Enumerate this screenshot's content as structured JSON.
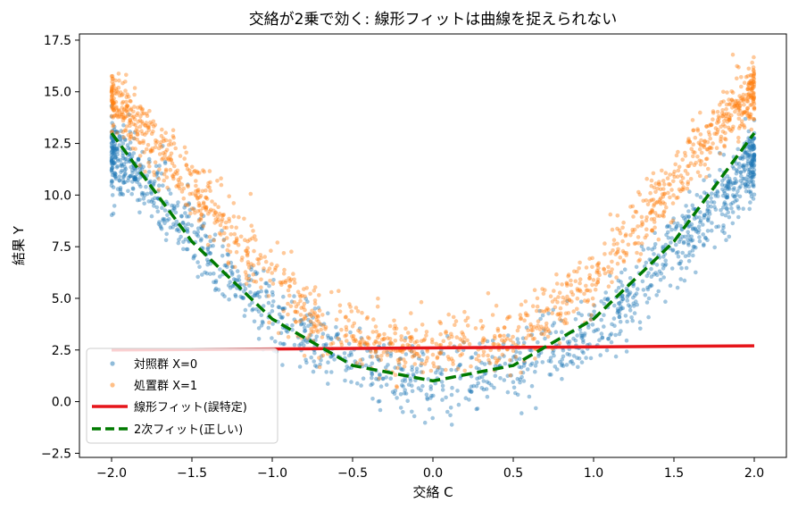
{
  "chart_data": {
    "type": "scatter",
    "title": "交絡が2乗で効く: 線形フィットは曲線を捉えられない",
    "xlabel": "交絡 C",
    "ylabel": "結果 Y",
    "xlim": [
      -2.2,
      2.2
    ],
    "ylim": [
      -2.7,
      17.8
    ],
    "x_ticks": [
      -2.0,
      -1.5,
      -1.0,
      -0.5,
      0.0,
      0.5,
      1.0,
      1.5,
      2.0
    ],
    "x_tick_labels": [
      "−2.0",
      "−1.5",
      "−1.0",
      "−0.5",
      "0.0",
      "0.5",
      "1.0",
      "1.5",
      "2.0"
    ],
    "y_ticks": [
      -2.5,
      0.0,
      2.5,
      5.0,
      7.5,
      10.0,
      12.5,
      15.0,
      17.5
    ],
    "y_tick_labels": [
      "−2.5",
      "0.0",
      "2.5",
      "5.0",
      "7.5",
      "10.0",
      "12.5",
      "15.0",
      "17.5"
    ],
    "grid": false,
    "legend_position": "lower-left",
    "series": [
      {
        "name": "対照群 X=0",
        "kind": "scatter",
        "color": "#1f77b4",
        "x": [
          -2.0,
          -1.8,
          -1.6,
          -1.4,
          -1.2,
          -1.0,
          -0.8,
          -0.6,
          -0.4,
          -0.2,
          0.0,
          0.2,
          0.4,
          0.6,
          0.8,
          1.0,
          1.2,
          1.4,
          1.6,
          1.8,
          2.0
        ],
        "y": [
          12.0,
          10.7,
          9.0,
          7.0,
          5.5,
          4.2,
          3.0,
          2.2,
          1.5,
          1.2,
          1.0,
          1.1,
          1.4,
          2.0,
          2.7,
          3.5,
          4.8,
          6.5,
          8.2,
          9.8,
          11.8
        ]
      },
      {
        "name": "処置群 X=1",
        "kind": "scatter",
        "color": "#ff7f0e",
        "x": [
          -2.0,
          -1.8,
          -1.6,
          -1.4,
          -1.2,
          -1.0,
          -0.8,
          -0.6,
          -0.4,
          -0.2,
          0.0,
          0.2,
          0.4,
          0.6,
          0.8,
          1.0,
          1.2,
          1.4,
          1.6,
          1.8,
          2.0
        ],
        "y": [
          14.8,
          13.0,
          11.2,
          9.5,
          7.8,
          6.0,
          4.6,
          3.6,
          3.0,
          2.7,
          2.6,
          2.7,
          3.0,
          3.6,
          4.8,
          6.0,
          7.7,
          9.6,
          11.5,
          13.3,
          15.2
        ]
      },
      {
        "name": "線形フィット(誤特定)",
        "kind": "line",
        "color": "#e6151a",
        "dash": false,
        "x": [
          -2.0,
          2.0
        ],
        "y": [
          2.5,
          2.7
        ]
      },
      {
        "name": "2次フィット(正しい)",
        "kind": "line",
        "color": "#007a00",
        "dash": true,
        "x": [
          -2.0,
          -1.5,
          -1.0,
          -0.5,
          0.0,
          0.5,
          1.0,
          1.5,
          2.0
        ],
        "y": [
          13.0,
          7.75,
          4.0,
          1.75,
          1.0,
          1.75,
          4.0,
          7.75,
          13.0
        ]
      }
    ]
  }
}
